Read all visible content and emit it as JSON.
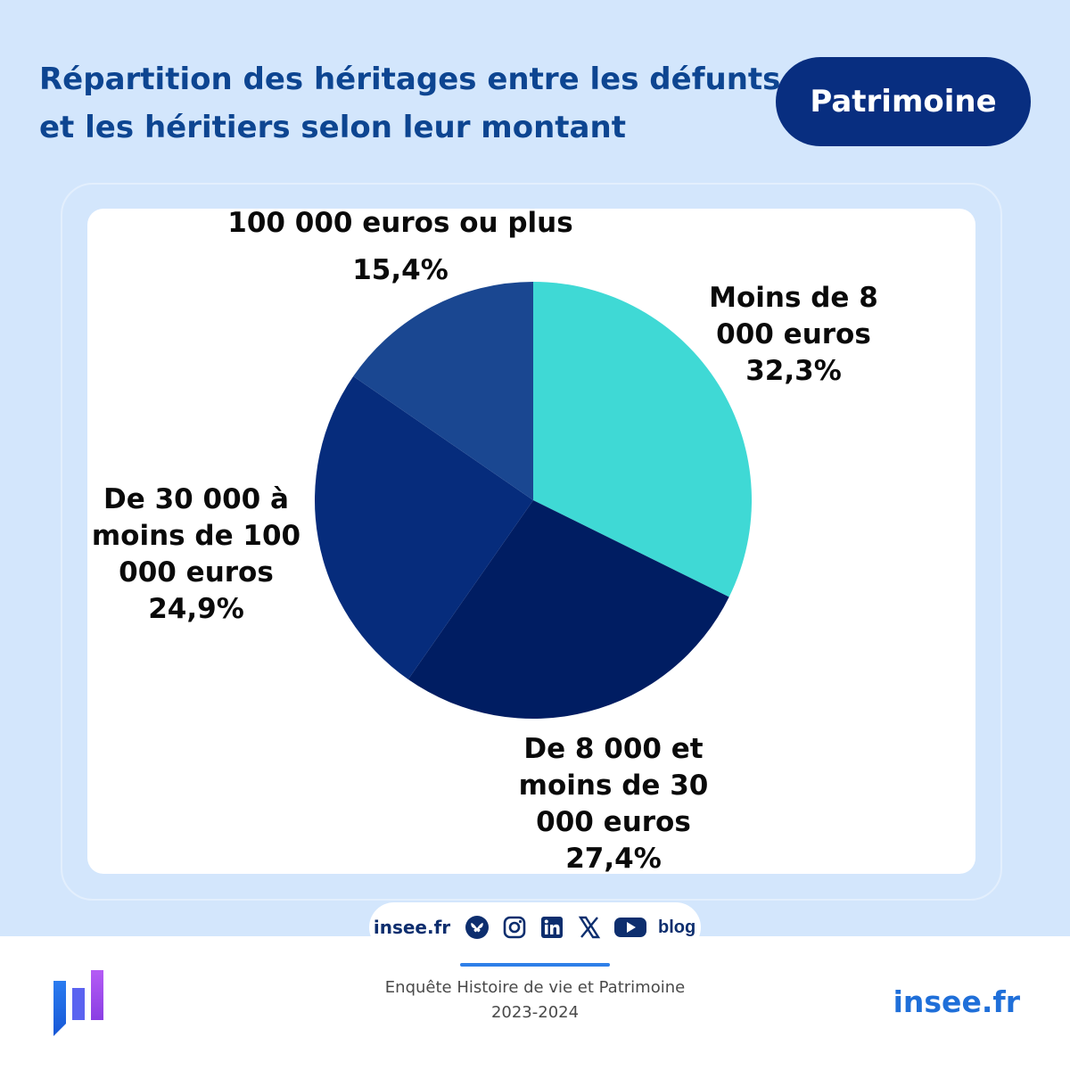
{
  "header": {
    "title": "Répartition des héritages entre les défunts et les héritiers selon leur montant",
    "badge": "Patrimoine"
  },
  "chart_data": {
    "type": "pie",
    "title": "Répartition des héritages entre les défunts et les héritiers selon leur montant",
    "start_angle_deg": 0,
    "direction": "clockwise",
    "slices": [
      {
        "label": "Moins de 8 000 euros",
        "value": 32.3,
        "display": "32,3%",
        "color": "#3fd9d5"
      },
      {
        "label": "De 8 000 et moins de 30 000 euros",
        "value": 27.4,
        "display": "27,4%",
        "color": "#001d62"
      },
      {
        "label": "De 30 000 à moins de 100 000 euros",
        "value": 24.9,
        "display": "24,9%",
        "color": "#062c7c"
      },
      {
        "label": "100 000 euros ou plus",
        "value": 15.4,
        "display": "15,4%",
        "color": "#1a4791"
      }
    ]
  },
  "footer": {
    "social": {
      "site": "insee.fr",
      "icons": [
        "bluesky-icon",
        "instagram-icon",
        "linkedin-icon",
        "x-icon",
        "youtube-icon",
        "blog-icon"
      ],
      "blog_label": "blog"
    },
    "source_line1": "Enquête Histoire de vie et Patrimoine",
    "source_line2": "2023-2024",
    "brand": "insee.fr",
    "logo_icon": "insee-logo-icon"
  }
}
